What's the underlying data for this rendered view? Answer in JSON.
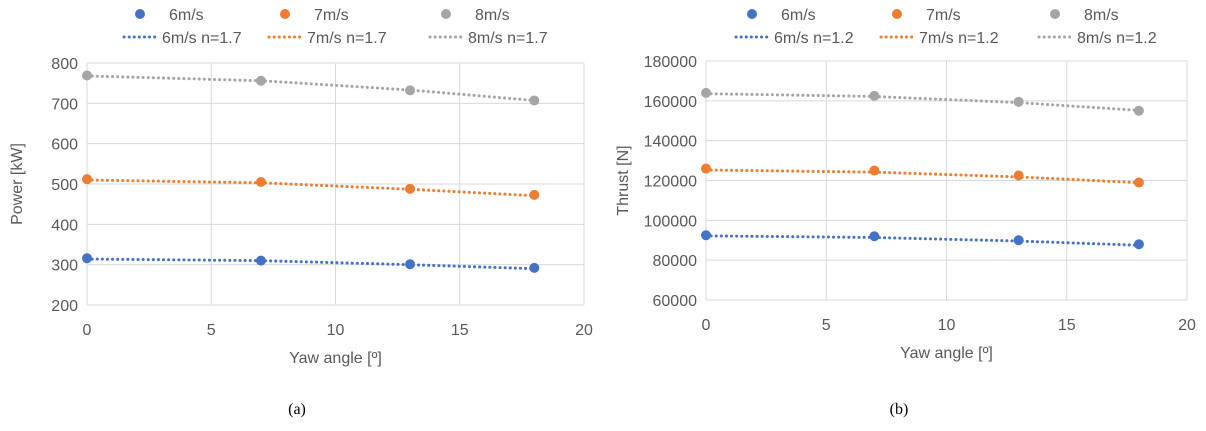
{
  "chart_data": [
    {
      "type": "scatter",
      "caption": "(a)",
      "xlabel": "Yaw angle [º]",
      "ylabel": "Power [kW]",
      "xlim": [
        0,
        20
      ],
      "ylim": [
        200,
        800
      ],
      "xticks": [
        0,
        5,
        10,
        15,
        20
      ],
      "yticks": [
        200,
        300,
        400,
        500,
        600,
        700,
        800
      ],
      "grid": true,
      "legend_placement": "top",
      "x": [
        0,
        7,
        13,
        18
      ],
      "series": [
        {
          "name": "6m/s",
          "color": "#4472c4",
          "values": [
            316,
            310,
            301,
            292
          ]
        },
        {
          "name": "7m/s",
          "color": "#ed7d31",
          "values": [
            512,
            505,
            488,
            473
          ]
        },
        {
          "name": "8m/s",
          "color": "#a5a5a5",
          "values": [
            769,
            756,
            732,
            707
          ]
        }
      ],
      "trendlines": [
        {
          "name": "6m/s n=1.7",
          "color": "#4472c4",
          "values": [
            314,
            310,
            300,
            290
          ]
        },
        {
          "name": "7m/s n=1.7",
          "color": "#ed7d31",
          "values": [
            510,
            503,
            487,
            471
          ]
        },
        {
          "name": "8m/s n=1.7",
          "color": "#a5a5a5",
          "values": [
            768,
            756,
            733,
            707
          ]
        }
      ]
    },
    {
      "type": "scatter",
      "caption": "(b)",
      "xlabel": "Yaw angle [º]",
      "ylabel": "Thrust [N]",
      "xlim": [
        0,
        20
      ],
      "ylim": [
        60000,
        180000
      ],
      "xticks": [
        0,
        5,
        10,
        15,
        20
      ],
      "yticks": [
        60000,
        80000,
        100000,
        120000,
        140000,
        160000,
        180000
      ],
      "grid": true,
      "legend_placement": "top",
      "x": [
        0,
        7,
        13,
        18
      ],
      "series": [
        {
          "name": "6m/s",
          "color": "#4472c4",
          "values": [
            92500,
            92000,
            90000,
            88000
          ]
        },
        {
          "name": "7m/s",
          "color": "#ed7d31",
          "values": [
            126000,
            125000,
            122500,
            119000
          ]
        },
        {
          "name": "8m/s",
          "color": "#a5a5a5",
          "values": [
            164000,
            162500,
            159500,
            155000
          ]
        }
      ],
      "trendlines": [
        {
          "name": "6m/s n=1.2",
          "color": "#4472c4",
          "values": [
            92200,
            91400,
            89600,
            87500
          ]
        },
        {
          "name": "7m/s n=1.2",
          "color": "#ed7d31",
          "values": [
            125300,
            124200,
            121800,
            118900
          ]
        },
        {
          "name": "8m/s n=1.2",
          "color": "#a5a5a5",
          "values": [
            163600,
            162200,
            159100,
            155200
          ]
        }
      ]
    }
  ]
}
